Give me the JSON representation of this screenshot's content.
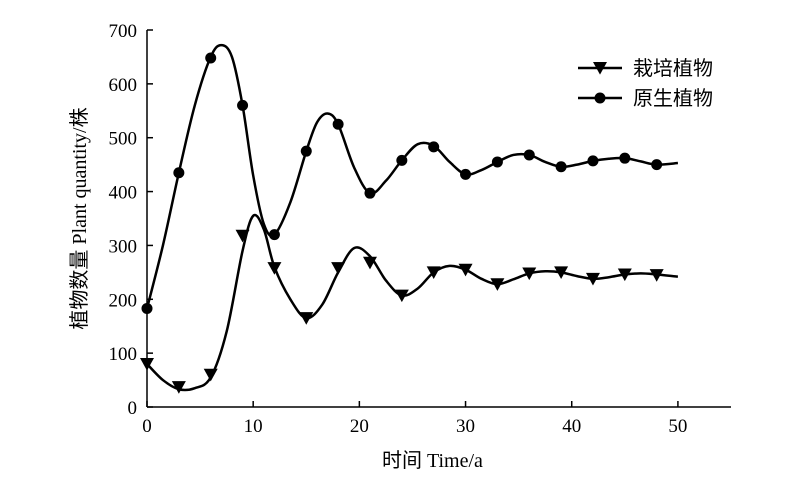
{
  "chart_data": {
    "type": "line",
    "xlabel": "时间 Time/a",
    "ylabel": "植物数量 Plant quantity/株",
    "xlim": [
      0,
      55
    ],
    "ylim": [
      0,
      700
    ],
    "x_ticks": [
      0,
      10,
      20,
      30,
      40,
      50
    ],
    "y_ticks": [
      0,
      100,
      200,
      300,
      400,
      500,
      600,
      700
    ],
    "grid": false,
    "legend_position": "top-right",
    "series": [
      {
        "name": "栽培植物",
        "marker": "triangle-down",
        "points": [
          {
            "x": 0,
            "y": 80
          },
          {
            "x": 3,
            "y": 37
          },
          {
            "x": 6,
            "y": 60
          },
          {
            "x": 9,
            "y": 318
          },
          {
            "x": 12,
            "y": 258
          },
          {
            "x": 15,
            "y": 165
          },
          {
            "x": 18,
            "y": 258
          },
          {
            "x": 21,
            "y": 268
          },
          {
            "x": 24,
            "y": 207
          },
          {
            "x": 27,
            "y": 250
          },
          {
            "x": 30,
            "y": 255
          },
          {
            "x": 33,
            "y": 228
          },
          {
            "x": 36,
            "y": 248
          },
          {
            "x": 39,
            "y": 250
          },
          {
            "x": 42,
            "y": 238
          },
          {
            "x": 45,
            "y": 246
          },
          {
            "x": 48,
            "y": 245
          }
        ],
        "curve": [
          [
            0,
            80
          ],
          [
            1.5,
            50
          ],
          [
            3,
            33
          ],
          [
            4.5,
            35
          ],
          [
            6,
            55
          ],
          [
            7.5,
            140
          ],
          [
            9,
            290
          ],
          [
            10,
            355
          ],
          [
            11,
            330
          ],
          [
            12,
            260
          ],
          [
            13.5,
            200
          ],
          [
            15,
            165
          ],
          [
            16.5,
            190
          ],
          [
            18,
            250
          ],
          [
            19.5,
            295
          ],
          [
            21,
            280
          ],
          [
            22.5,
            235
          ],
          [
            24,
            207
          ],
          [
            25.5,
            220
          ],
          [
            27,
            250
          ],
          [
            28.5,
            262
          ],
          [
            30,
            255
          ],
          [
            31.5,
            238
          ],
          [
            33,
            228
          ],
          [
            34.5,
            237
          ],
          [
            36,
            248
          ],
          [
            37.5,
            252
          ],
          [
            39,
            250
          ],
          [
            40.5,
            243
          ],
          [
            42,
            238
          ],
          [
            43.5,
            241
          ],
          [
            45,
            246
          ],
          [
            46.5,
            248
          ],
          [
            48,
            246
          ],
          [
            50,
            242
          ]
        ]
      },
      {
        "name": "原生植物",
        "marker": "circle",
        "points": [
          {
            "x": 0,
            "y": 183
          },
          {
            "x": 3,
            "y": 435
          },
          {
            "x": 6,
            "y": 648
          },
          {
            "x": 9,
            "y": 560
          },
          {
            "x": 12,
            "y": 320
          },
          {
            "x": 15,
            "y": 475
          },
          {
            "x": 18,
            "y": 525
          },
          {
            "x": 21,
            "y": 397
          },
          {
            "x": 24,
            "y": 458
          },
          {
            "x": 27,
            "y": 483
          },
          {
            "x": 30,
            "y": 432
          },
          {
            "x": 33,
            "y": 455
          },
          {
            "x": 36,
            "y": 468
          },
          {
            "x": 39,
            "y": 446
          },
          {
            "x": 42,
            "y": 457
          },
          {
            "x": 45,
            "y": 462
          },
          {
            "x": 48,
            "y": 450
          }
        ],
        "curve": [
          [
            0,
            183
          ],
          [
            1.5,
            300
          ],
          [
            3,
            435
          ],
          [
            4.5,
            560
          ],
          [
            6,
            650
          ],
          [
            7,
            672
          ],
          [
            8,
            650
          ],
          [
            9,
            560
          ],
          [
            10,
            430
          ],
          [
            11,
            340
          ],
          [
            12,
            320
          ],
          [
            13.5,
            380
          ],
          [
            15,
            475
          ],
          [
            16,
            528
          ],
          [
            17,
            545
          ],
          [
            18,
            525
          ],
          [
            19.5,
            445
          ],
          [
            21,
            397
          ],
          [
            22.5,
            420
          ],
          [
            24,
            458
          ],
          [
            25.5,
            488
          ],
          [
            27,
            485
          ],
          [
            28.5,
            455
          ],
          [
            30,
            432
          ],
          [
            31.5,
            440
          ],
          [
            33,
            455
          ],
          [
            34.5,
            468
          ],
          [
            36,
            468
          ],
          [
            37.5,
            455
          ],
          [
            39,
            446
          ],
          [
            40.5,
            450
          ],
          [
            42,
            457
          ],
          [
            43.5,
            461
          ],
          [
            45,
            462
          ],
          [
            46.5,
            456
          ],
          [
            48,
            450
          ],
          [
            50,
            453
          ]
        ]
      }
    ]
  }
}
